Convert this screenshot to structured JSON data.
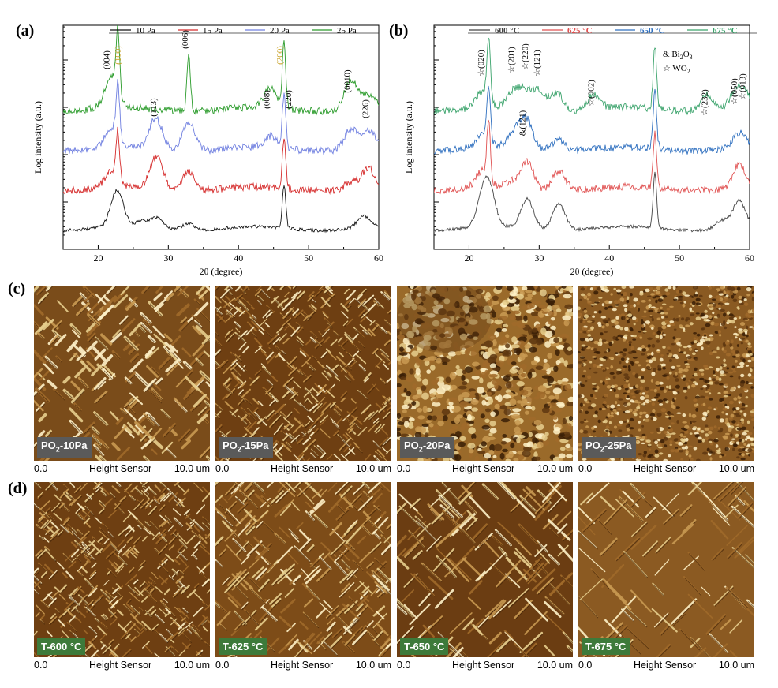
{
  "panels": {
    "a": "(a)",
    "b": "(b)",
    "c": "(c)",
    "d": "(d)"
  },
  "chart_data": [
    {
      "type": "line",
      "id": "a",
      "xlabel": "2θ (degree)",
      "ylabel": "Log intensity (a.u.)",
      "xlim": [
        15,
        60
      ],
      "xticks": [
        20,
        30,
        40,
        50,
        60
      ],
      "log_scale_y": true,
      "legend_position": "top",
      "series": [
        {
          "name": "10 Pa",
          "color": "#111111",
          "offset": 0.0,
          "peaks": [
            [
              22.7,
              1.1
            ],
            [
              26.2,
              0.18
            ],
            [
              28.4,
              0.32
            ],
            [
              32.8,
              0.2
            ],
            [
              46.5,
              1.3
            ],
            [
              57.8,
              0.35
            ]
          ]
        },
        {
          "name": "15 Pa",
          "color": "#d52a2a",
          "offset": 0.9,
          "peaks": [
            [
              21.9,
              0.5
            ],
            [
              22.8,
              1.4
            ],
            [
              28.3,
              0.95
            ],
            [
              32.9,
              0.6
            ],
            [
              46.5,
              1.5
            ],
            [
              56.0,
              0.2
            ],
            [
              58.5,
              0.6
            ]
          ]
        },
        {
          "name": "20 Pa",
          "color": "#6f7fe0",
          "offset": 1.8,
          "peaks": [
            [
              21.9,
              0.6
            ],
            [
              22.8,
              1.6
            ],
            [
              28.2,
              0.95
            ],
            [
              32.9,
              0.9
            ],
            [
              44.6,
              0.35
            ],
            [
              46.5,
              1.6
            ],
            [
              56.0,
              0.6
            ],
            [
              58.5,
              0.55
            ]
          ]
        },
        {
          "name": "25 Pa",
          "color": "#2a9b2a",
          "offset": 2.7,
          "peaks": [
            [
              21.9,
              0.9
            ],
            [
              22.8,
              1.9
            ],
            [
              32.9,
              1.7
            ],
            [
              44.6,
              0.6
            ],
            [
              46.5,
              1.9
            ],
            [
              56.0,
              0.9
            ],
            [
              58.5,
              0.4
            ]
          ]
        }
      ],
      "annotations": [
        {
          "text": "(004)",
          "x": 21.6
        },
        {
          "text": "(100)",
          "x": 23.2,
          "color": "#c9a227"
        },
        {
          "text": "(113)",
          "x": 28.3
        },
        {
          "text": "(006)",
          "x": 32.8
        },
        {
          "text": "(008)",
          "x": 44.4
        },
        {
          "text": "(200)",
          "x": 46.3,
          "color": "#c9a227"
        },
        {
          "text": "(220)",
          "x": 47.5
        },
        {
          "text": "(0010)",
          "x": 55.9
        },
        {
          "text": "(226)",
          "x": 58.5
        }
      ]
    },
    {
      "type": "line",
      "id": "b",
      "xlabel": "2θ (degree)",
      "ylabel": "Log intensity (a.u.)",
      "xlim": [
        15,
        60
      ],
      "xticks": [
        20,
        30,
        40,
        50,
        60
      ],
      "log_scale_y": true,
      "legend_position": "top",
      "series": [
        {
          "name": "600 °C",
          "color": "#444444",
          "offset": 0.0,
          "peaks": [
            [
              21.9,
              0.6
            ],
            [
              22.8,
              1.1
            ],
            [
              28.3,
              0.9
            ],
            [
              32.8,
              0.8
            ],
            [
              46.5,
              1.7
            ],
            [
              56.0,
              0.25
            ],
            [
              58.5,
              0.8
            ]
          ]
        },
        {
          "name": "625 °C",
          "color": "#e05050",
          "offset": 0.9,
          "peaks": [
            [
              21.9,
              0.5
            ],
            [
              22.8,
              1.7
            ],
            [
              26.2,
              0.2
            ],
            [
              28.3,
              0.8
            ],
            [
              32.8,
              0.6
            ],
            [
              46.5,
              1.7
            ],
            [
              58.5,
              0.7
            ]
          ]
        },
        {
          "name": "650 °C",
          "color": "#2e6fbf",
          "offset": 1.8,
          "peaks": [
            [
              21.9,
              0.4
            ],
            [
              22.8,
              1.6
            ],
            [
              26.2,
              0.35
            ],
            [
              27.7,
              0.45
            ],
            [
              28.3,
              0.55
            ],
            [
              32.8,
              0.35
            ],
            [
              46.5,
              1.7
            ],
            [
              58.5,
              0.45
            ]
          ]
        },
        {
          "name": "675 °C",
          "color": "#3aa36b",
          "offset": 2.7,
          "peaks": [
            [
              21.9,
              0.5
            ],
            [
              22.8,
              1.8
            ],
            [
              26.2,
              0.45
            ],
            [
              27.9,
              0.55
            ],
            [
              30.0,
              0.6
            ],
            [
              32.5,
              0.55
            ],
            [
              37.8,
              0.45
            ],
            [
              46.5,
              1.9
            ],
            [
              53.9,
              0.5
            ],
            [
              58.0,
              0.45
            ],
            [
              59.2,
              0.4
            ]
          ]
        }
      ],
      "annotations": [
        {
          "text": "(020)",
          "x": 22.1,
          "mark": "☆"
        },
        {
          "text": "(201)",
          "x": 26.4,
          "mark": "☆"
        },
        {
          "text": "(220)",
          "x": 28.4,
          "mark": "☆"
        },
        {
          "text": "(121)",
          "x": 30.1,
          "mark": "☆"
        },
        {
          "text": "(121)",
          "x": 28.0,
          "mark": "&"
        },
        {
          "text": "(002)",
          "x": 37.8,
          "mark": "☆"
        },
        {
          "text": "(232)",
          "x": 54.0,
          "mark": "☆"
        },
        {
          "text": "(050)",
          "x": 58.2,
          "mark": "☆"
        },
        {
          "text": "(013)",
          "x": 59.4,
          "mark": "☆"
        }
      ],
      "key": [
        {
          "mark": "&",
          "label": "Bi",
          "sub": "2",
          "label2": "O",
          "sub2": "3"
        },
        {
          "mark": "☆",
          "label": "WO",
          "sub": "2",
          "label2": "",
          "sub2": ""
        }
      ]
    }
  ],
  "afm_footer": {
    "start": "0.0",
    "middle": "Height Sensor",
    "end": "10.0 um"
  },
  "afm_rows": [
    {
      "row": "c",
      "tag_color": "#5a5a5a",
      "images": [
        {
          "tag_main": "PO",
          "tag_sub": "2",
          "tag_rest": "-10Pa",
          "pattern": "rods-coarse",
          "seed": 11
        },
        {
          "tag_main": "PO",
          "tag_sub": "2",
          "tag_rest": "-15Pa",
          "pattern": "rods-fine",
          "seed": 23
        },
        {
          "tag_main": "PO",
          "tag_sub": "2",
          "tag_rest": "-20Pa",
          "pattern": "grains",
          "seed": 37
        },
        {
          "tag_main": "PO",
          "tag_sub": "2",
          "tag_rest": "-25Pa",
          "pattern": "dots",
          "seed": 41
        }
      ]
    },
    {
      "row": "d",
      "tag_color": "#3d7a3a",
      "images": [
        {
          "tag_main": "T-600 °C",
          "tag_sub": "",
          "tag_rest": "",
          "pattern": "rods-fine",
          "seed": 53
        },
        {
          "tag_main": "T-625 °C",
          "tag_sub": "",
          "tag_rest": "",
          "pattern": "rods-mid",
          "seed": 67
        },
        {
          "tag_main": "T-650 °C",
          "tag_sub": "",
          "tag_rest": "",
          "pattern": "rods-sparse",
          "seed": 79
        },
        {
          "tag_main": "T-675 °C",
          "tag_sub": "",
          "tag_rest": "",
          "pattern": "rods-faint",
          "seed": 97
        }
      ]
    }
  ]
}
